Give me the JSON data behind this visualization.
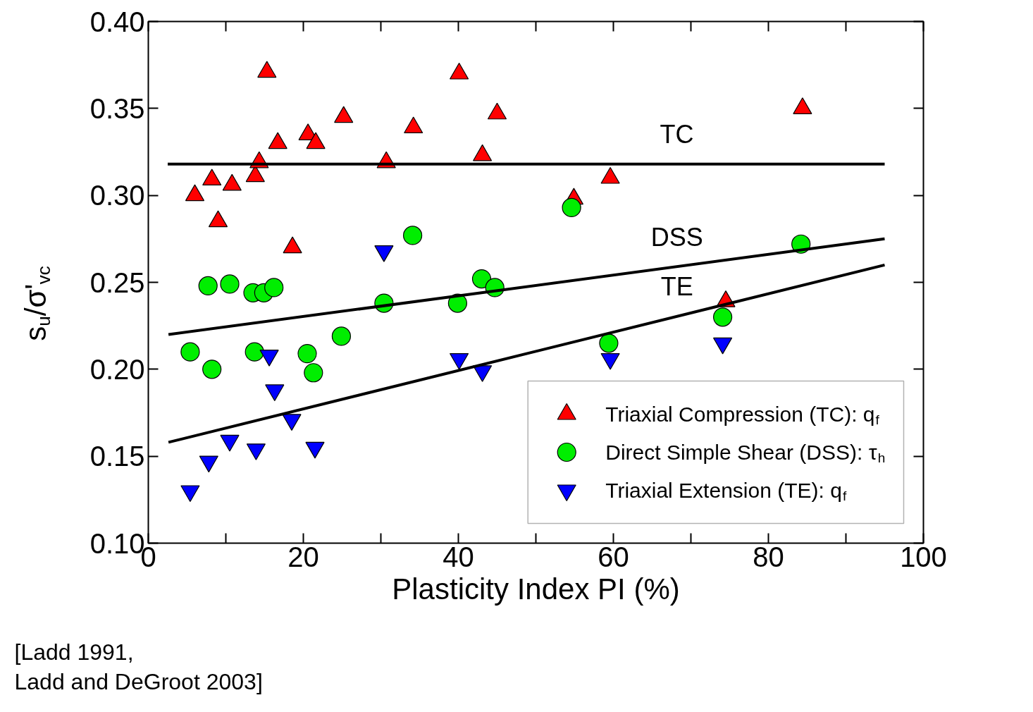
{
  "chart_data": {
    "type": "scatter",
    "xlabel": "Plasticity Index PI (%)",
    "ylabel": "s$_{u}$/σ'$_{vc}$",
    "xlim": [
      0,
      100
    ],
    "ylim": [
      0.1,
      0.4
    ],
    "xticks": [
      0,
      {
        "value": 10,
        "label": null
      },
      20,
      {
        "value": 30,
        "label": null
      },
      40,
      {
        "value": 50,
        "label": null
      },
      60,
      {
        "value": 70,
        "label": null
      },
      80,
      {
        "value": 90,
        "label": null
      },
      100
    ],
    "yticks": [
      {
        "value": 0.1,
        "label": "0.10"
      },
      {
        "value": 0.15,
        "label": "0.15"
      },
      {
        "value": 0.2,
        "label": "0.20"
      },
      {
        "value": 0.25,
        "label": "0.25"
      },
      {
        "value": 0.3,
        "label": "0.30"
      },
      {
        "value": 0.35,
        "label": "0.35"
      },
      {
        "value": 0.4,
        "label": "0.40"
      }
    ],
    "grid": false,
    "legend": "bottom right",
    "series": [
      {
        "name": "Triaxial Compression (TC): q$_{f}$",
        "color": "#ff0000",
        "marker": "triangle",
        "x": [
          6.0,
          8.2,
          9.0,
          10.8,
          13.8,
          14.3,
          15.3,
          16.7,
          18.6,
          20.6,
          21.6,
          25.2,
          30.7,
          34.2,
          40.1,
          43.1,
          45.0,
          54.9,
          59.6,
          74.5,
          84.4
        ],
        "values": [
          0.3,
          0.309,
          0.285,
          0.306,
          0.311,
          0.319,
          0.371,
          0.33,
          0.27,
          0.335,
          0.33,
          0.345,
          0.319,
          0.339,
          0.37,
          0.323,
          0.347,
          0.298,
          0.31,
          0.239,
          0.35
        ]
      },
      {
        "name": "Direct Simple Shear (DSS): τ$_{h}$",
        "color": "#00ee00",
        "marker": "circle",
        "x": [
          5.4,
          8.2,
          7.7,
          10.5,
          13.5,
          13.7,
          14.9,
          16.2,
          20.5,
          21.3,
          24.9,
          30.4,
          34.1,
          39.9,
          43.0,
          44.7,
          54.6,
          59.4,
          74.1,
          84.2
        ],
        "values": [
          0.21,
          0.2,
          0.248,
          0.249,
          0.244,
          0.21,
          0.244,
          0.247,
          0.209,
          0.198,
          0.219,
          0.238,
          0.277,
          0.238,
          0.252,
          0.247,
          0.293,
          0.215,
          0.23,
          0.272
        ]
      },
      {
        "name": "Triaxial Extension (TE): q$_{f}$",
        "color": "#0000ff",
        "x": [
          5.4,
          7.8,
          10.5,
          13.9,
          15.6,
          16.3,
          18.5,
          21.5,
          30.4,
          40.1,
          43.1,
          59.6,
          74.1
        ],
        "values": [
          0.13,
          0.147,
          0.159,
          0.154,
          0.208,
          0.188,
          0.171,
          0.155,
          0.268,
          0.206,
          0.199,
          0.206,
          0.215
        ]
      },
      {
        "name": "TC",
        "type": "line",
        "color": "#000000",
        "x": [
          2.5,
          95.0
        ],
        "values": [
          0.318,
          0.318
        ]
      },
      {
        "name": "DSS",
        "type": "line",
        "color": "#000000",
        "x": [
          2.6,
          95.0
        ],
        "values": [
          0.22,
          0.275
        ]
      },
      {
        "name": "TE",
        "type": "line",
        "color": "#000000",
        "x": [
          2.6,
          95.0
        ],
        "values": [
          0.158,
          0.26
        ]
      }
    ],
    "annotations": [
      "[Ladd 1991,\nLadd and DeGroot 2003]"
    ]
  }
}
